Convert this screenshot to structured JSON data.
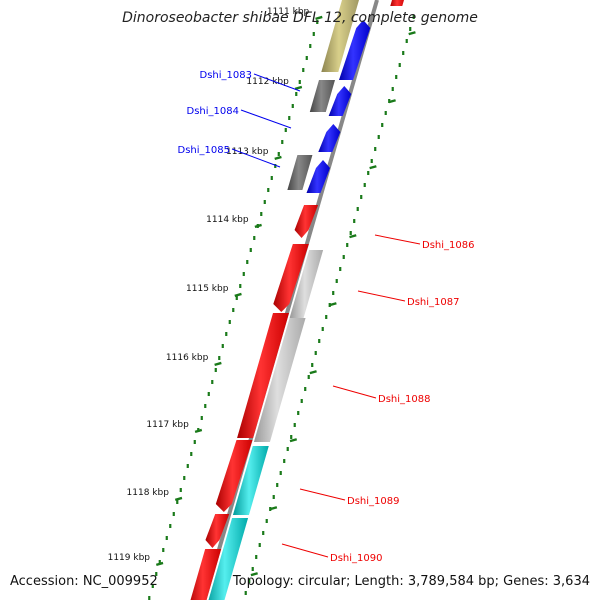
{
  "title": "Dinoroseobacter shibae DFL 12, complete genome",
  "footer": {
    "accession": "Accession: NC_009952",
    "summary": "Topology: circular; Length: 3,789,584 bp; Genes: 3,634"
  },
  "colors": {
    "forward_gene": "#0000ee",
    "reverse_gene": "#ee0000",
    "rna_gene": "#b8ad66",
    "other_feature": "#666666",
    "cds_reverse": "#bbbbbb",
    "cds_teal": "#22cccc",
    "tick": "#1a7a1a",
    "backbone": "#888888"
  },
  "ticks": [
    {
      "label": "1111 kbp"
    },
    {
      "label": "1112 kbp"
    },
    {
      "label": "1113 kbp"
    },
    {
      "label": "1114 kbp"
    },
    {
      "label": "1115 kbp"
    },
    {
      "label": "1116 kbp"
    },
    {
      "label": "1117 kbp"
    },
    {
      "label": "1118 kbp"
    },
    {
      "label": "1119 kbp"
    }
  ],
  "genes_left": [
    {
      "label": "Dshi_1083"
    },
    {
      "label": "Dshi_1084"
    },
    {
      "label": "Dshi_1085"
    }
  ],
  "genes_right": [
    {
      "label": "Dshi_1086"
    },
    {
      "label": "Dshi_1087"
    },
    {
      "label": "Dshi_1088"
    },
    {
      "label": "Dshi_1089"
    },
    {
      "label": "Dshi_1090"
    }
  ]
}
